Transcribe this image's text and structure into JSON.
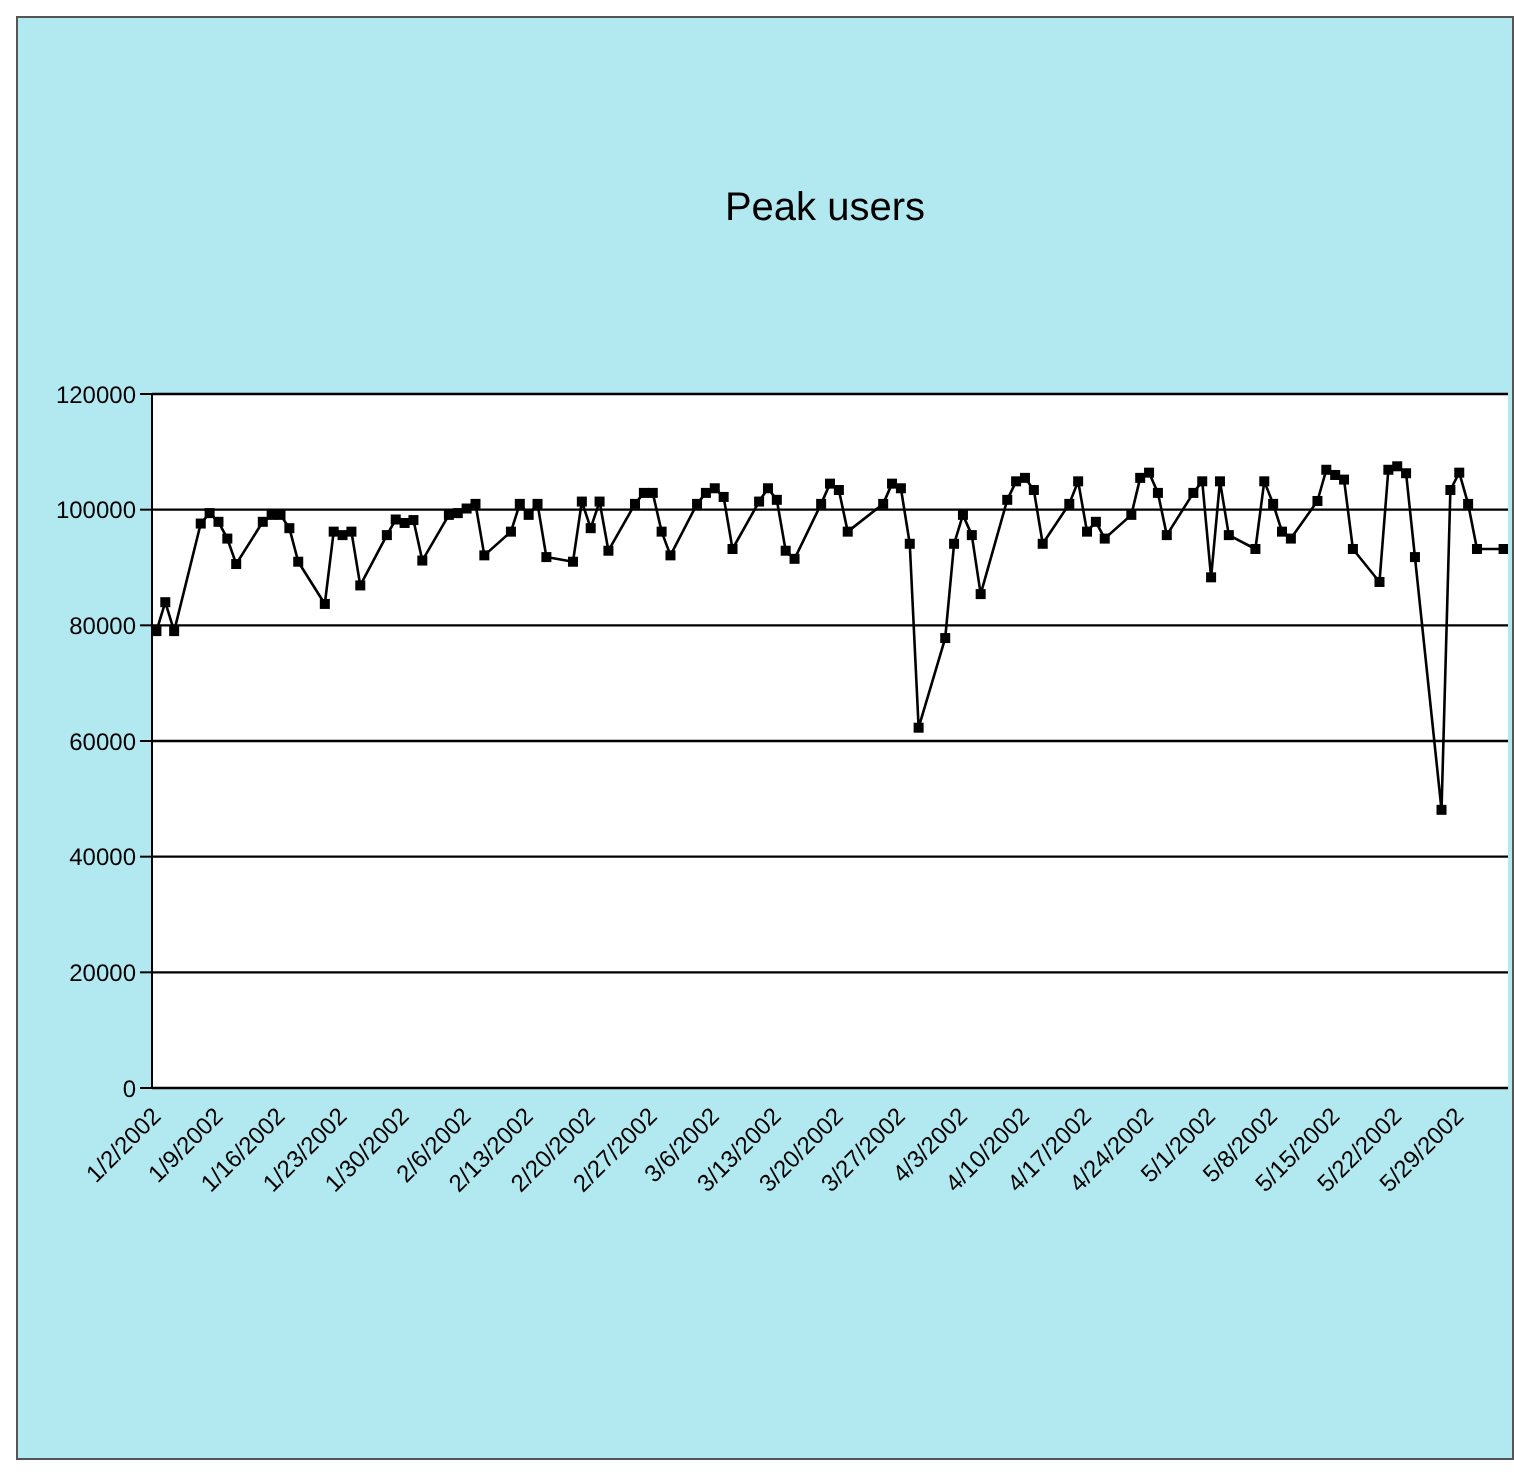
{
  "chart_data": {
    "type": "line",
    "title": "Peak users",
    "x": [
      "2002-01-02",
      "2002-01-03",
      "2002-01-04",
      "2002-01-07",
      "2002-01-08",
      "2002-01-09",
      "2002-01-10",
      "2002-01-11",
      "2002-01-14",
      "2002-01-15",
      "2002-01-16",
      "2002-01-17",
      "2002-01-18",
      "2002-01-21",
      "2002-01-22",
      "2002-01-23",
      "2002-01-24",
      "2002-01-25",
      "2002-01-28",
      "2002-01-29",
      "2002-01-30",
      "2002-01-31",
      "2002-02-01",
      "2002-02-04",
      "2002-02-05",
      "2002-02-06",
      "2002-02-07",
      "2002-02-08",
      "2002-02-11",
      "2002-02-12",
      "2002-02-13",
      "2002-02-14",
      "2002-02-15",
      "2002-02-18",
      "2002-02-19",
      "2002-02-20",
      "2002-02-21",
      "2002-02-22",
      "2002-02-25",
      "2002-02-26",
      "2002-02-27",
      "2002-02-28",
      "2002-03-01",
      "2002-03-04",
      "2002-03-05",
      "2002-03-06",
      "2002-03-07",
      "2002-03-08",
      "2002-03-11",
      "2002-03-12",
      "2002-03-13",
      "2002-03-14",
      "2002-03-15",
      "2002-03-18",
      "2002-03-19",
      "2002-03-20",
      "2002-03-21",
      "2002-03-25",
      "2002-03-26",
      "2002-03-27",
      "2002-03-28",
      "2002-03-29",
      "2002-04-01",
      "2002-04-02",
      "2002-04-03",
      "2002-04-04",
      "2002-04-05",
      "2002-04-08",
      "2002-04-09",
      "2002-04-10",
      "2002-04-11",
      "2002-04-12",
      "2002-04-15",
      "2002-04-16",
      "2002-04-17",
      "2002-04-18",
      "2002-04-19",
      "2002-04-22",
      "2002-04-23",
      "2002-04-24",
      "2002-04-25",
      "2002-04-26",
      "2002-04-29",
      "2002-04-30",
      "2002-05-01",
      "2002-05-02",
      "2002-05-03",
      "2002-05-06",
      "2002-05-07",
      "2002-05-08",
      "2002-05-09",
      "2002-05-10",
      "2002-05-13",
      "2002-05-14",
      "2002-05-15",
      "2002-05-16",
      "2002-05-17",
      "2002-05-20",
      "2002-05-21",
      "2002-05-22",
      "2002-05-23",
      "2002-05-24",
      "2002-05-27",
      "2002-05-28",
      "2002-05-29",
      "2002-05-30",
      "2002-05-31",
      "2002-06-03"
    ],
    "series": [
      {
        "color": "#000000",
        "values": [
          79000,
          84000,
          79000,
          97600,
          99400,
          97900,
          95000,
          90600,
          97900,
          99100,
          99100,
          96800,
          91000,
          83700,
          96200,
          95600,
          96200,
          86900,
          95600,
          98300,
          97700,
          98200,
          91200,
          99100,
          99400,
          100200,
          101000,
          92100,
          96200,
          101000,
          99100,
          101000,
          91800,
          91000,
          101400,
          96800,
          101400,
          92900,
          101000,
          102900,
          102900,
          96200,
          92100,
          101000,
          102900,
          103700,
          102200,
          93200,
          101400,
          103700,
          101700,
          92900,
          91500,
          101000,
          104500,
          103400,
          96200,
          101000,
          104500,
          103700,
          94100,
          62300,
          77800,
          94100,
          99100,
          95600,
          85400,
          101700,
          104900,
          105500,
          103400,
          94100,
          101000,
          104900,
          96200,
          97900,
          95000,
          99100,
          105500,
          106400,
          102900,
          95600,
          102900,
          104900,
          88300,
          104900,
          95600,
          93200,
          104900,
          101000,
          96200,
          95000,
          101500,
          106900,
          106000,
          105200,
          93200,
          87500,
          106900,
          107500,
          106300,
          91800,
          48100,
          103400,
          106400,
          101000,
          93200,
          93200
        ]
      }
    ],
    "xlim": [
      "2002-01-01T12:00",
      "2002-06-03T12:00"
    ],
    "xticks": [
      {
        "value": "2002-01-02",
        "label": "1/2/2002"
      },
      {
        "value": "2002-01-09",
        "label": "1/9/2002"
      },
      {
        "value": "2002-01-16",
        "label": "1/16/2002"
      },
      {
        "value": "2002-01-23",
        "label": "1/23/2002"
      },
      {
        "value": "2002-01-30",
        "label": "1/30/2002"
      },
      {
        "value": "2002-02-06",
        "label": "2/6/2002"
      },
      {
        "value": "2002-02-13",
        "label": "2/13/2002"
      },
      {
        "value": "2002-02-20",
        "label": "2/20/2002"
      },
      {
        "value": "2002-02-27",
        "label": "2/27/2002"
      },
      {
        "value": "2002-03-06",
        "label": "3/6/2002"
      },
      {
        "value": "2002-03-13",
        "label": "3/13/2002"
      },
      {
        "value": "2002-03-20",
        "label": "3/20/2002"
      },
      {
        "value": "2002-03-27",
        "label": "3/27/2002"
      },
      {
        "value": "2002-04-03",
        "label": "4/3/2002"
      },
      {
        "value": "2002-04-10",
        "label": "4/10/2002"
      },
      {
        "value": "2002-04-17",
        "label": "4/17/2002"
      },
      {
        "value": "2002-04-24",
        "label": "4/24/2002"
      },
      {
        "value": "2002-05-01",
        "label": "5/1/2002"
      },
      {
        "value": "2002-05-08",
        "label": "5/8/2002"
      },
      {
        "value": "2002-05-15",
        "label": "5/15/2002"
      },
      {
        "value": "2002-05-22",
        "label": "5/22/2002"
      },
      {
        "value": "2002-05-29",
        "label": "5/29/2002"
      }
    ],
    "ylim": [
      0,
      120000
    ],
    "yticks": [
      0,
      20000,
      40000,
      60000,
      80000,
      100000,
      120000
    ],
    "grid": "y",
    "legend": false,
    "marker": "square",
    "line_style": "solid"
  }
}
